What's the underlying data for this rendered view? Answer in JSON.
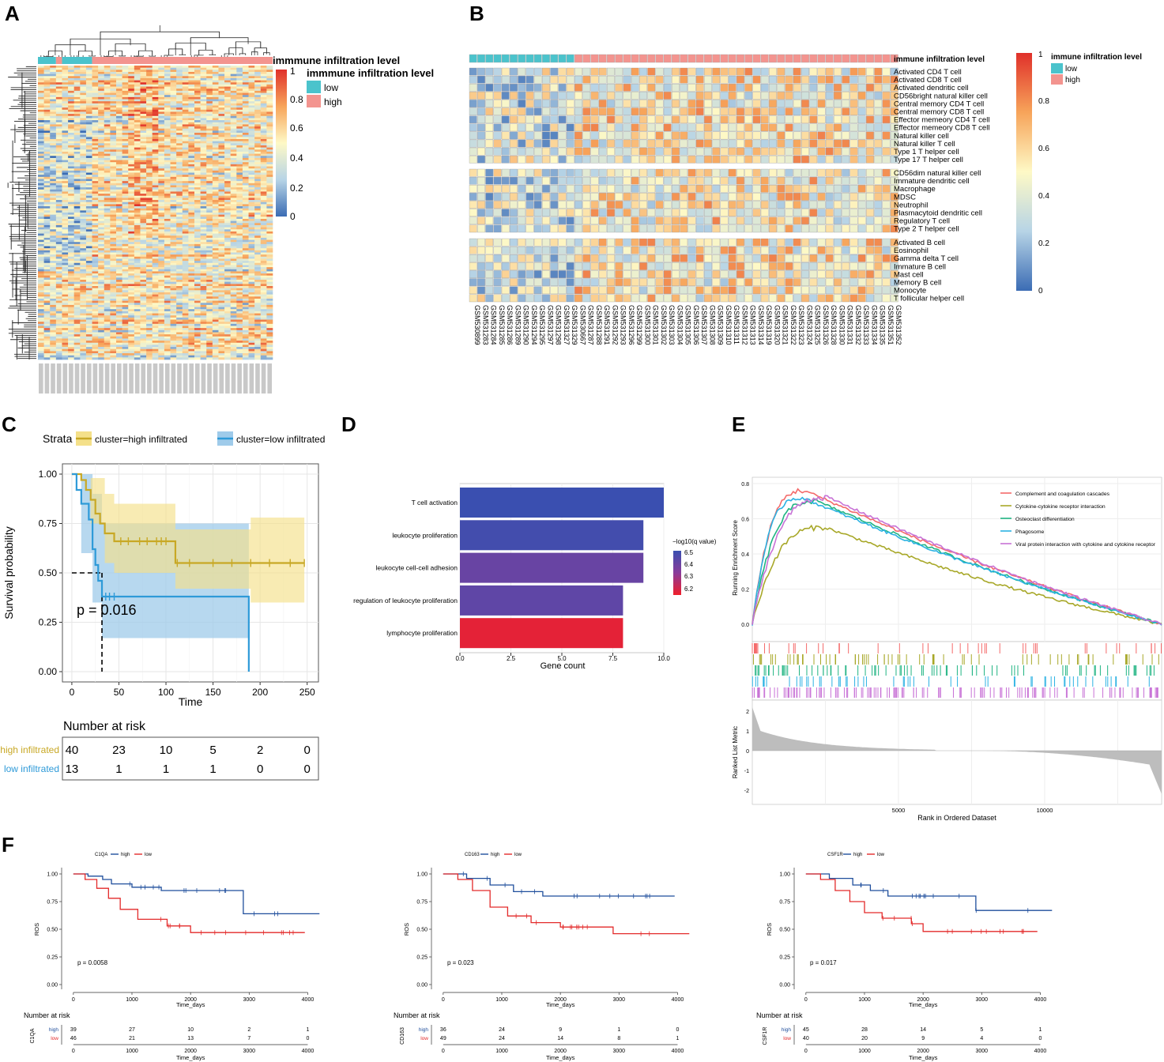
{
  "panels": {
    "A": "A",
    "B": "B",
    "C": "C",
    "D": "D",
    "E": "E",
    "F": "F"
  },
  "colors": {
    "low": "#4BC3CC",
    "high": "#F3948F",
    "hm_low": "#3B6CB4",
    "hm_mid": "#FEF9C6",
    "hm_high": "#E0302A",
    "km_high": "#C8A825",
    "km_low": "#2E9AD8",
    "km_high_band": "#F4E08A",
    "km_low_band": "#9FCBEA",
    "f_high": "#1F4E9C",
    "f_low": "#E32A2A"
  },
  "panelA": {
    "legend_title": "immmune infiltration level",
    "legend_low": "low",
    "legend_high": "high",
    "scale_ticks": [
      "1",
      "0.8",
      "0.6",
      "0.4",
      "0.2",
      "0"
    ],
    "annot_groups": [
      {
        "level": "low",
        "n": 3
      },
      {
        "level": "high",
        "n": 1
      },
      {
        "level": "low",
        "n": 5
      },
      {
        "level": "high",
        "n": 30
      }
    ]
  },
  "panelB": {
    "annot_label": "immune infiltration level",
    "legend_title": "immune infiltration level",
    "legend_low": "low",
    "legend_high": "high",
    "scale_ticks": [
      "1",
      "0.8",
      "0.6",
      "0.4",
      "0.2",
      "0"
    ],
    "n_low": 13,
    "groups": [
      [
        "Activated CD4 T cell",
        "Activated CD8 T cell",
        "Activated dendritic cell",
        "CD56bright natural killer cell",
        "Central memory CD4 T cell",
        "Central memory CD8 T cell",
        "Effector memeory CD4 T cell",
        "Effector memeory CD8 T cell",
        "Natural killer cell",
        "Natural killer T cell",
        "Type 1 T helper cell",
        "Type 17 T helper cell"
      ],
      [
        "CD56dim natural killer cell",
        "Immature dendritic cell",
        "Macrophage",
        "MDSC",
        "Neutrophil",
        "Plasmacytoid dendritic cell",
        "Regulatory T cell",
        "Type 2 T helper cell"
      ],
      [
        "Activated B cell",
        "Eosinophil",
        "Gamma delta T cell",
        "Immature  B cell",
        "Mast cell",
        "Memory B cell",
        "Monocyte",
        "T follicular helper cell"
      ]
    ],
    "samples": [
      "GSM530899",
      "GSM531283",
      "GSM531284",
      "GSM531285",
      "GSM531286",
      "GSM531289",
      "GSM531290",
      "GSM531294",
      "GSM531295",
      "GSM531297",
      "GSM531298",
      "GSM531327",
      "GSM531329",
      "GSM530667",
      "GSM531287",
      "GSM531288",
      "GSM531291",
      "GSM531292",
      "GSM531293",
      "GSM531296",
      "GSM531299",
      "GSM531300",
      "GSM531301",
      "GSM531302",
      "GSM531303",
      "GSM531304",
      "GSM531305",
      "GSM531306",
      "GSM531307",
      "GSM531308",
      "GSM531309",
      "GSM531310",
      "GSM531311",
      "GSM531312",
      "GSM531313",
      "GSM531314",
      "GSM531319",
      "GSM531320",
      "GSM531321",
      "GSM531322",
      "GSM531323",
      "GSM531324",
      "GSM531325",
      "GSM531326",
      "GSM531328",
      "GSM531330",
      "GSM531331",
      "GSM531332",
      "GSM531333",
      "GSM531334",
      "GSM531335",
      "GSM531351",
      "GSM531352"
    ]
  },
  "panelC": {
    "strata_label": "Strata",
    "legend_high": "cluster=high infiltrated",
    "legend_low": "cluster=low infiltrated",
    "ylabel": "Survival probability",
    "xlabel": "Time",
    "pvalue": "p = 0.016",
    "xticks": [
      "0",
      "50",
      "100",
      "150",
      "200",
      "250"
    ],
    "yticks": [
      "1.00",
      "0.75",
      "0.50",
      "0.25",
      "0.00"
    ],
    "xlim": [
      0,
      250
    ],
    "ylim": [
      0,
      1
    ],
    "chart_data": {
      "type": "line",
      "series": [
        {
          "name": "high infiltrated",
          "points": [
            [
              0,
              1
            ],
            [
              10,
              0.97
            ],
            [
              15,
              0.92
            ],
            [
              20,
              0.87
            ],
            [
              25,
              0.8
            ],
            [
              30,
              0.75
            ],
            [
              35,
              0.7
            ],
            [
              45,
              0.66
            ],
            [
              90,
              0.66
            ],
            [
              110,
              0.55
            ],
            [
              247,
              0.55
            ]
          ]
        },
        {
          "name": "low infiltrated",
          "points": [
            [
              0,
              1
            ],
            [
              5,
              0.92
            ],
            [
              10,
              0.85
            ],
            [
              18,
              0.77
            ],
            [
              22,
              0.62
            ],
            [
              25,
              0.54
            ],
            [
              28,
              0.46
            ],
            [
              32,
              0.38
            ],
            [
              188,
              0.38
            ],
            [
              188,
              0
            ]
          ]
        }
      ]
    },
    "risk_title": "Number at risk",
    "risk_rows": [
      {
        "label": "high infiltrated",
        "values": [
          "40",
          "23",
          "10",
          "5",
          "2",
          "0"
        ]
      },
      {
        "label": "low infiltrated",
        "values": [
          "13",
          "1",
          "1",
          "1",
          "0",
          "0"
        ]
      }
    ]
  },
  "panelD": {
    "xlabel": "Gene count",
    "legend_title": "−log10(q value)",
    "legend_ticks": [
      "6.5",
      "6.4",
      "6.3",
      "6.2"
    ],
    "xticks": [
      "0.0",
      "2.5",
      "5.0",
      "7.5",
      "10.0"
    ],
    "chart_data": {
      "type": "bar",
      "categories": [
        "T cell activation",
        "leukocyte proliferation",
        "leukocyte cell-cell adhesion",
        "regulation of leukocyte proliferation",
        "lymphocyte proliferation"
      ],
      "values": [
        10,
        9,
        9,
        8,
        8
      ],
      "color_values": [
        6.5,
        6.48,
        6.4,
        6.42,
        6.17
      ],
      "xlim": [
        0,
        10
      ]
    }
  },
  "panelE": {
    "ylabel_top": "Running Enrichment Score",
    "ylabel_bottom": "Ranked List Metric",
    "xlabel": "Rank in Ordered Dataset",
    "yticks_top": [
      "0.8",
      "0.6",
      "0.4",
      "0.2",
      "0.0"
    ],
    "yticks_bottom": [
      "2",
      "1",
      "0",
      "-1",
      "-2"
    ],
    "xticks": [
      "5000",
      "10000"
    ],
    "legend": [
      {
        "name": "Complement and coagulation cascades",
        "color": "#F46A6A"
      },
      {
        "name": "Cytokine-cytokine receptor interaction",
        "color": "#A8A829"
      },
      {
        "name": "Osteoclast differentiation",
        "color": "#20B482"
      },
      {
        "name": "Phagosome",
        "color": "#2BB2E3"
      },
      {
        "name": "Viral protein interaction with cytokine and cytokine receptor",
        "color": "#C872D6"
      }
    ],
    "chart_data": {
      "type": "line",
      "x_max": 14000,
      "series": [
        {
          "name": "Complement and coagulation cascades",
          "peak": 0.76,
          "peak_x": 1800
        },
        {
          "name": "Cytokine-cytokine receptor interaction",
          "peak": 0.55,
          "peak_x": 2500
        },
        {
          "name": "Osteoclast differentiation",
          "peak": 0.7,
          "peak_x": 2200
        },
        {
          "name": "Phagosome",
          "peak": 0.72,
          "peak_x": 1700
        },
        {
          "name": "Viral protein interaction with cytokine and cytokine receptor",
          "peak": 0.72,
          "peak_x": 2600
        }
      ]
    }
  },
  "panelF": [
    {
      "gene": "C1QA",
      "pvalue": "p = 0.0058",
      "high_label": "high",
      "low_label": "low",
      "ylabel": "ROS",
      "xlabel": "Time_days",
      "risk_title": "Number at risk",
      "xticks": [
        "0",
        "1000",
        "2000",
        "3000",
        "4000"
      ],
      "yticks": [
        "1.00",
        "0.75",
        "0.50",
        "0.25",
        "0.00"
      ],
      "risk": {
        "high": [
          "39",
          "27",
          "10",
          "2",
          "1"
        ],
        "low": [
          "46",
          "21",
          "13",
          "7",
          "0"
        ]
      },
      "chart_data": {
        "type": "line",
        "series": [
          {
            "name": "high",
            "points": [
              [
                0,
                1
              ],
              [
                250,
                0.98
              ],
              [
                500,
                0.95
              ],
              [
                650,
                0.91
              ],
              [
                1000,
                0.88
              ],
              [
                1500,
                0.85
              ],
              [
                2900,
                0.85
              ],
              [
                2900,
                0.64
              ],
              [
                4200,
                0.64
              ]
            ]
          },
          {
            "name": "low",
            "points": [
              [
                0,
                1
              ],
              [
                200,
                0.95
              ],
              [
                400,
                0.87
              ],
              [
                600,
                0.78
              ],
              [
                800,
                0.68
              ],
              [
                1100,
                0.59
              ],
              [
                1600,
                0.53
              ],
              [
                2000,
                0.47
              ],
              [
                3950,
                0.47
              ]
            ]
          }
        ]
      }
    },
    {
      "gene": "CD163",
      "pvalue": "p = 0.023",
      "high_label": "high",
      "low_label": "low",
      "ylabel": "ROS",
      "xlabel": "Time_days",
      "risk_title": "Number at risk",
      "xticks": [
        "0",
        "1000",
        "2000",
        "3000",
        "4000"
      ],
      "yticks": [
        "1.00",
        "0.75",
        "0.50",
        "0.25",
        "0.00"
      ],
      "risk": {
        "high": [
          "36",
          "24",
          "9",
          "1",
          "0"
        ],
        "low": [
          "49",
          "24",
          "14",
          "8",
          "1"
        ]
      },
      "chart_data": {
        "type": "line",
        "series": [
          {
            "name": "high",
            "points": [
              [
                0,
                1
              ],
              [
                400,
                0.96
              ],
              [
                800,
                0.9
              ],
              [
                1200,
                0.84
              ],
              [
                1700,
                0.8
              ],
              [
                3950,
                0.8
              ]
            ]
          },
          {
            "name": "low",
            "points": [
              [
                0,
                1
              ],
              [
                250,
                0.95
              ],
              [
                500,
                0.85
              ],
              [
                800,
                0.7
              ],
              [
                1100,
                0.62
              ],
              [
                1500,
                0.56
              ],
              [
                2000,
                0.52
              ],
              [
                2900,
                0.52
              ],
              [
                2900,
                0.46
              ],
              [
                4200,
                0.46
              ]
            ]
          }
        ]
      }
    },
    {
      "gene": "CSF1R",
      "pvalue": "p = 0.017",
      "high_label": "high",
      "low_label": "low",
      "ylabel": "ROS",
      "xlabel": "Time_days",
      "risk_title": "Number at risk",
      "xticks": [
        "0",
        "1000",
        "2000",
        "3000",
        "4000"
      ],
      "yticks": [
        "1.00",
        "0.75",
        "0.50",
        "0.25",
        "0.00"
      ],
      "risk": {
        "high": [
          "45",
          "28",
          "14",
          "5",
          "1"
        ],
        "low": [
          "40",
          "20",
          "9",
          "4",
          "0"
        ]
      },
      "chart_data": {
        "type": "line",
        "series": [
          {
            "name": "high",
            "points": [
              [
                0,
                1
              ],
              [
                400,
                0.96
              ],
              [
                800,
                0.9
              ],
              [
                1100,
                0.85
              ],
              [
                1400,
                0.8
              ],
              [
                2900,
                0.8
              ],
              [
                2900,
                0.67
              ],
              [
                4200,
                0.67
              ]
            ]
          },
          {
            "name": "low",
            "points": [
              [
                0,
                1
              ],
              [
                250,
                0.95
              ],
              [
                500,
                0.85
              ],
              [
                750,
                0.75
              ],
              [
                1000,
                0.65
              ],
              [
                1300,
                0.6
              ],
              [
                1800,
                0.55
              ],
              [
                2000,
                0.48
              ],
              [
                3950,
                0.48
              ]
            ]
          }
        ]
      }
    }
  ]
}
